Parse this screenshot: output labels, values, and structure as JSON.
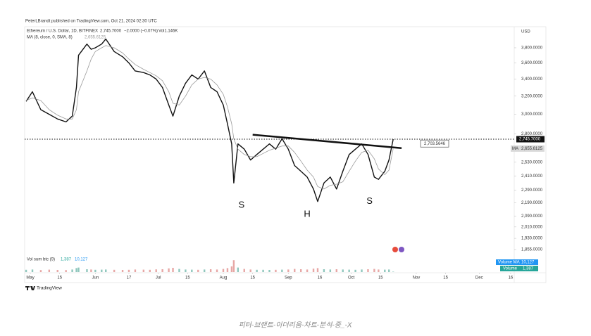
{
  "header": {
    "published": "PeterLBrandt published on TradingView.com, Oct 21, 2024 02:30 UTC",
    "logo": "TradingView",
    "caption": "피터-브랜트-이더리움-차트-분석-중_-X"
  },
  "chart_data": {
    "type": "line",
    "log_scale": true,
    "grid": false,
    "currency": "USD",
    "symbol": "Ethereum / U.S. Dollar, 1D, BITFINEX",
    "change": "−2.0000 (−0.07%)",
    "volume_text": "Vol1.146K",
    "ma_title": "MA (8, close, 0, SMA, 8)",
    "last_price": {
      "value": 2745.7,
      "label": "2,745.7000"
    },
    "last_ma": {
      "value": 2655.6125,
      "label": "2,655.6125",
      "tag": "MA"
    },
    "x": [
      -2,
      1,
      5,
      9,
      13,
      17,
      20,
      22,
      23,
      27,
      29,
      31,
      34,
      36,
      40,
      44,
      47,
      50,
      54,
      57,
      60,
      63,
      66,
      68,
      71,
      74,
      77,
      80,
      83,
      86,
      89,
      92,
      94,
      96,
      97,
      99,
      102,
      105,
      108,
      111,
      114,
      117,
      120,
      123,
      126,
      129,
      132,
      135,
      137,
      140,
      143,
      146,
      149,
      152,
      155,
      158,
      161,
      164,
      166,
      169,
      171,
      173
    ],
    "series": [
      {
        "name": "Price",
        "color": "#111111",
        "values": [
          3140,
          3250,
          3050,
          3000,
          2950,
          2920,
          2980,
          3300,
          3700,
          3850,
          3780,
          3800,
          3850,
          3920,
          3750,
          3680,
          3600,
          3500,
          3480,
          3450,
          3400,
          3300,
          3100,
          2980,
          3200,
          3350,
          3450,
          3400,
          3500,
          3300,
          3250,
          3100,
          2900,
          2700,
          2350,
          2700,
          2650,
          2550,
          2600,
          2650,
          2700,
          2650,
          2750,
          2650,
          2500,
          2450,
          2400,
          2300,
          2200,
          2350,
          2400,
          2300,
          2450,
          2600,
          2650,
          2700,
          2600,
          2400,
          2380,
          2450,
          2550,
          2745.7
        ]
      },
      {
        "name": "MA",
        "color": "#9a9a9a",
        "values": [
          3150,
          3180,
          3150,
          3050,
          2990,
          2950,
          2950,
          3050,
          3250,
          3500,
          3650,
          3750,
          3800,
          3830,
          3800,
          3730,
          3650,
          3580,
          3520,
          3480,
          3440,
          3380,
          3250,
          3120,
          3100,
          3200,
          3330,
          3400,
          3420,
          3400,
          3330,
          3220,
          3080,
          2900,
          2750,
          2650,
          2600,
          2580,
          2580,
          2610,
          2640,
          2660,
          2680,
          2680,
          2620,
          2540,
          2460,
          2400,
          2320,
          2300,
          2330,
          2340,
          2360,
          2450,
          2540,
          2620,
          2640,
          2560,
          2470,
          2420,
          2460,
          2655.6
        ]
      }
    ],
    "volume": {
      "title": "Vol sum btc (9)",
      "ma_name": "Volume MA",
      "name": "Volume",
      "up_color": "#8fc7bd",
      "down_color": "#e7a7a5",
      "ylim": [
        0,
        60000
      ],
      "values": [
        8000,
        9000,
        7000,
        8500,
        7500,
        7000,
        9000,
        14000,
        16000,
        10000,
        9000,
        8000,
        8500,
        9000,
        8000,
        7500,
        8000,
        9000,
        8500,
        8000,
        9500,
        10000,
        13000,
        15000,
        11000,
        9000,
        8500,
        8000,
        9000,
        10000,
        9000,
        11000,
        14000,
        20000,
        42000,
        16000,
        11000,
        9000,
        8000,
        8000,
        7500,
        8000,
        8500,
        9000,
        11000,
        10000,
        9000,
        12000,
        14000,
        10000,
        9000,
        10000,
        9000,
        8500,
        8000,
        9000,
        10000,
        11000,
        9000,
        8500,
        9000,
        1387
      ],
      "last": {
        "value": 1387,
        "label": "1,387"
      },
      "ma": {
        "value": 10127,
        "label": "10,127"
      }
    },
    "trendline": {
      "x": [
        106,
        177
      ],
      "values": [
        2790,
        2660
      ],
      "label": {
        "value": 2703.5646,
        "label": "2,703.5646"
      }
    },
    "annotations": [
      {
        "text": "S",
        "x": 100.7,
        "y": 2170
      },
      {
        "text": "H",
        "x": 132,
        "y": 2100
      },
      {
        "text": "S",
        "x": 161.7,
        "y": 2200
      }
    ],
    "xlim": [
      -2.7,
      230.7
    ],
    "ylim": [
      1708,
      4075
    ],
    "xticks": [
      {
        "value": 0,
        "label": "May"
      },
      {
        "value": 14,
        "label": "15"
      },
      {
        "value": 31,
        "label": "Jun"
      },
      {
        "value": 47,
        "label": "17"
      },
      {
        "value": 61,
        "label": "Jul"
      },
      {
        "value": 75,
        "label": "15"
      },
      {
        "value": 92,
        "label": "Aug"
      },
      {
        "value": 106,
        "label": "15"
      },
      {
        "value": 123,
        "label": "Sep"
      },
      {
        "value": 138,
        "label": "16"
      },
      {
        "value": 153,
        "label": "Oct"
      },
      {
        "value": 167,
        "label": "15"
      },
      {
        "value": 184,
        "label": "Nov"
      },
      {
        "value": 198,
        "label": "15"
      },
      {
        "value": 214,
        "label": "Dec"
      },
      {
        "value": 229,
        "label": "16"
      }
    ],
    "yticks": [
      {
        "value": 3800,
        "label": "3,800.0000"
      },
      {
        "value": 3600,
        "label": "3,600.0000"
      },
      {
        "value": 3400,
        "label": "3,400.0000"
      },
      {
        "value": 3200,
        "label": "3,200.0000"
      },
      {
        "value": 3000,
        "label": "3,000.0000"
      },
      {
        "value": 2800,
        "label": "2,800.0000"
      },
      {
        "value": 2530,
        "label": "2,530.0000"
      },
      {
        "value": 2410,
        "label": "2,410.0000"
      },
      {
        "value": 2290,
        "label": "2,290.0000"
      },
      {
        "value": 2190,
        "label": "2,190.0000"
      },
      {
        "value": 2090,
        "label": "2,090.0000"
      },
      {
        "value": 2010,
        "label": "2,010.0000"
      },
      {
        "value": 1930,
        "label": "1,930.0000"
      },
      {
        "value": 1855,
        "label": "1,855.0000"
      }
    ]
  }
}
